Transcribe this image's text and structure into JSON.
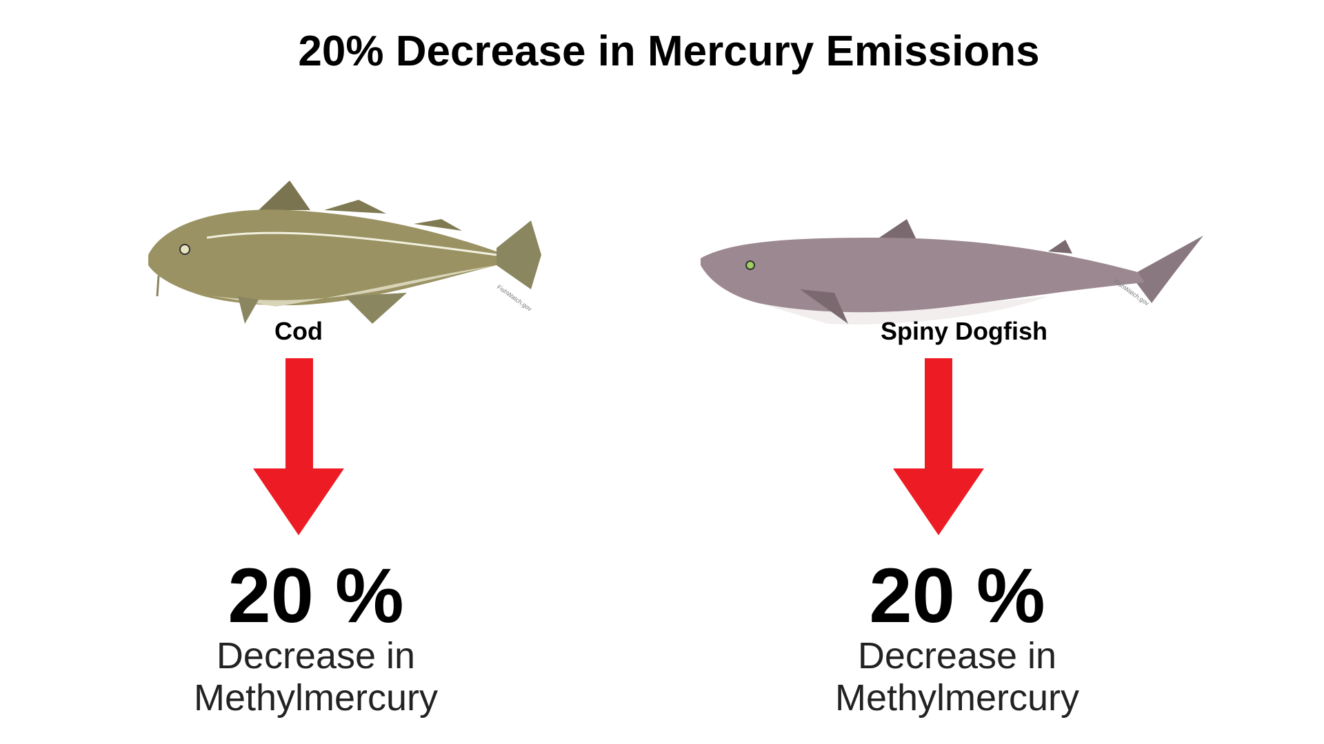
{
  "title": "20% Decrease in Mercury Emissions",
  "panels": [
    {
      "fish": "Cod",
      "credit": "FishWatch.gov",
      "value": "20 %",
      "description": [
        "Decrease in",
        "Methylmercury"
      ]
    },
    {
      "fish": "Spiny Dogfish",
      "credit": "FishWatch.gov",
      "value": "20 %",
      "description": [
        "Decrease in",
        "Methylmercury"
      ]
    }
  ]
}
